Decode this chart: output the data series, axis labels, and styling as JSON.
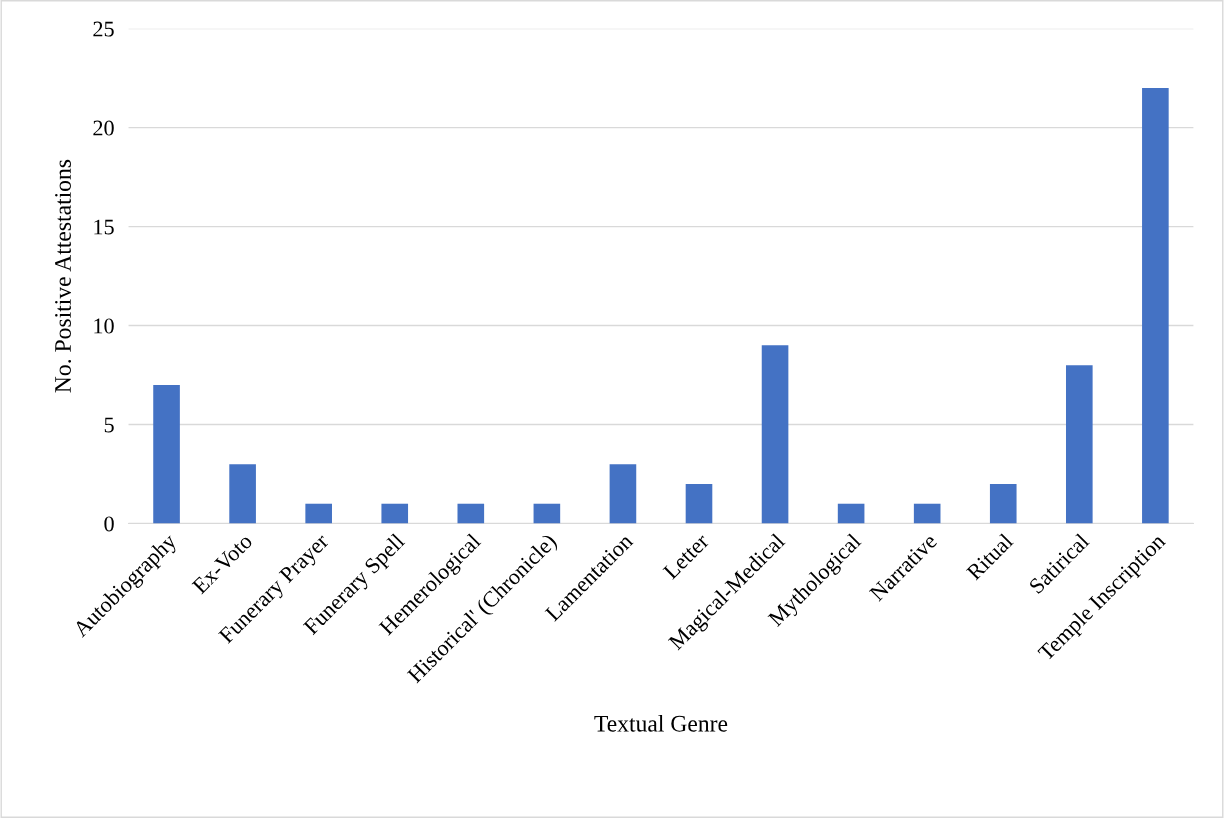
{
  "chart_data": {
    "type": "bar",
    "xlabel": "Textual Genre",
    "ylabel": "No. Positive Attestations",
    "categories": [
      "Autobiography",
      "Ex-Voto",
      "Funerary Prayer",
      "Funerary Spell",
      "Hemerological",
      "Historical' (Chronicle)",
      "Lamentation",
      "Letter",
      "Magical-Medical",
      "Mythological",
      "Narrative",
      "Ritual",
      "Satirical",
      "Temple Inscription"
    ],
    "values": [
      7,
      3,
      1,
      1,
      1,
      1,
      3,
      2,
      9,
      1,
      1,
      2,
      8,
      22
    ],
    "color": "#4472c4",
    "ylim": [
      0,
      25
    ],
    "yticks": [
      0,
      5,
      10,
      15,
      20,
      25
    ],
    "grid": "y"
  }
}
